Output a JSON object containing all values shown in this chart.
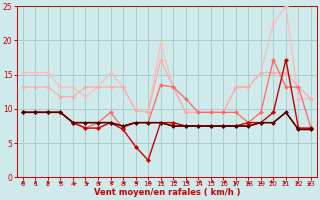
{
  "title": "",
  "xlabel": "Vent moyen/en rafales ( km/h )",
  "xlim": [
    -0.5,
    23.5
  ],
  "ylim": [
    0,
    25
  ],
  "yticks": [
    0,
    5,
    10,
    15,
    20,
    25
  ],
  "xticks": [
    0,
    1,
    2,
    3,
    4,
    5,
    6,
    7,
    8,
    9,
    10,
    11,
    12,
    13,
    14,
    15,
    16,
    17,
    18,
    19,
    20,
    21,
    22,
    23
  ],
  "bg_color": "#ceeaea",
  "grid_color": "#aacccc",
  "lines": [
    {
      "x": [
        0,
        1,
        2,
        3,
        4,
        5,
        6,
        7,
        8,
        9,
        10,
        11,
        12,
        13,
        14,
        15,
        16,
        17,
        18,
        19,
        20,
        21,
        22,
        23
      ],
      "y": [
        15.3,
        15.3,
        15.3,
        13.2,
        13.2,
        11.8,
        13.2,
        15.3,
        13.2,
        9.8,
        9.5,
        19.5,
        13.2,
        9.5,
        9.5,
        9.5,
        9.5,
        13.2,
        13.2,
        15.3,
        22.5,
        25.0,
        11.5,
        11.5
      ],
      "color": "#ffbbbb",
      "lw": 0.9,
      "marker": "D",
      "ms": 2.0
    },
    {
      "x": [
        0,
        1,
        2,
        3,
        4,
        5,
        6,
        7,
        8,
        9,
        10,
        11,
        12,
        13,
        14,
        15,
        16,
        17,
        18,
        19,
        20,
        21,
        22,
        23
      ],
      "y": [
        13.2,
        13.2,
        13.2,
        11.8,
        11.8,
        13.2,
        13.2,
        13.2,
        13.2,
        9.8,
        9.5,
        17.2,
        13.2,
        9.5,
        9.5,
        9.5,
        9.5,
        13.2,
        13.2,
        15.3,
        15.3,
        15.3,
        13.2,
        11.5
      ],
      "color": "#ffaaaa",
      "lw": 0.9,
      "marker": "D",
      "ms": 2.0
    },
    {
      "x": [
        0,
        1,
        2,
        3,
        4,
        5,
        6,
        7,
        8,
        9,
        10,
        11,
        12,
        13,
        14,
        15,
        16,
        17,
        18,
        19,
        20,
        21,
        22,
        23
      ],
      "y": [
        9.5,
        9.5,
        9.5,
        9.5,
        8.0,
        7.2,
        8.0,
        9.5,
        7.2,
        8.0,
        8.0,
        13.5,
        13.2,
        11.5,
        9.5,
        9.5,
        9.5,
        9.5,
        8.0,
        9.5,
        17.2,
        13.2,
        13.2,
        7.2
      ],
      "color": "#ff6666",
      "lw": 0.9,
      "marker": "D",
      "ms": 2.0
    },
    {
      "x": [
        0,
        1,
        2,
        3,
        4,
        5,
        6,
        7,
        8,
        9,
        10,
        11,
        12,
        13,
        14,
        15,
        16,
        17,
        18,
        19,
        20,
        21,
        22,
        23
      ],
      "y": [
        9.5,
        9.5,
        9.5,
        9.5,
        8.0,
        7.2,
        7.2,
        8.0,
        7.0,
        4.5,
        2.5,
        8.0,
        8.0,
        7.5,
        7.5,
        7.5,
        7.5,
        7.5,
        8.0,
        8.0,
        9.5,
        17.2,
        7.2,
        7.2
      ],
      "color": "#cc0000",
      "lw": 1.0,
      "marker": "D",
      "ms": 2.2
    },
    {
      "x": [
        0,
        1,
        2,
        3,
        4,
        5,
        6,
        7,
        8,
        9,
        10,
        11,
        12,
        13,
        14,
        15,
        16,
        17,
        18,
        19,
        20,
        21,
        22,
        23
      ],
      "y": [
        9.5,
        9.5,
        9.5,
        9.5,
        8.0,
        8.0,
        8.0,
        8.0,
        7.5,
        8.0,
        8.0,
        8.0,
        7.5,
        7.5,
        7.5,
        7.5,
        7.5,
        7.5,
        7.5,
        8.0,
        8.0,
        9.5,
        7.0,
        7.0
      ],
      "color": "#880000",
      "lw": 1.0,
      "marker": "D",
      "ms": 2.0
    },
    {
      "x": [
        0,
        1,
        2,
        3,
        4,
        5,
        6,
        7,
        8,
        9,
        10,
        11,
        12,
        13,
        14,
        15,
        16,
        17,
        18,
        19,
        20,
        21,
        22,
        23
      ],
      "y": [
        9.5,
        9.5,
        9.5,
        9.5,
        8.0,
        8.0,
        8.0,
        8.0,
        7.5,
        8.0,
        8.0,
        8.0,
        7.5,
        7.5,
        7.5,
        7.5,
        7.5,
        7.5,
        7.5,
        8.0,
        8.0,
        9.5,
        7.0,
        7.0
      ],
      "color": "#550000",
      "lw": 1.0,
      "marker": "D",
      "ms": 1.8
    }
  ],
  "arrow_angles_deg": [
    180,
    180,
    180,
    210,
    225,
    225,
    240,
    240,
    255,
    270,
    285,
    300,
    315,
    315,
    315,
    315,
    315,
    360,
    30,
    30,
    45,
    60,
    90,
    135
  ],
  "tick_color": "#cc0000",
  "axis_label_color": "#cc0000"
}
